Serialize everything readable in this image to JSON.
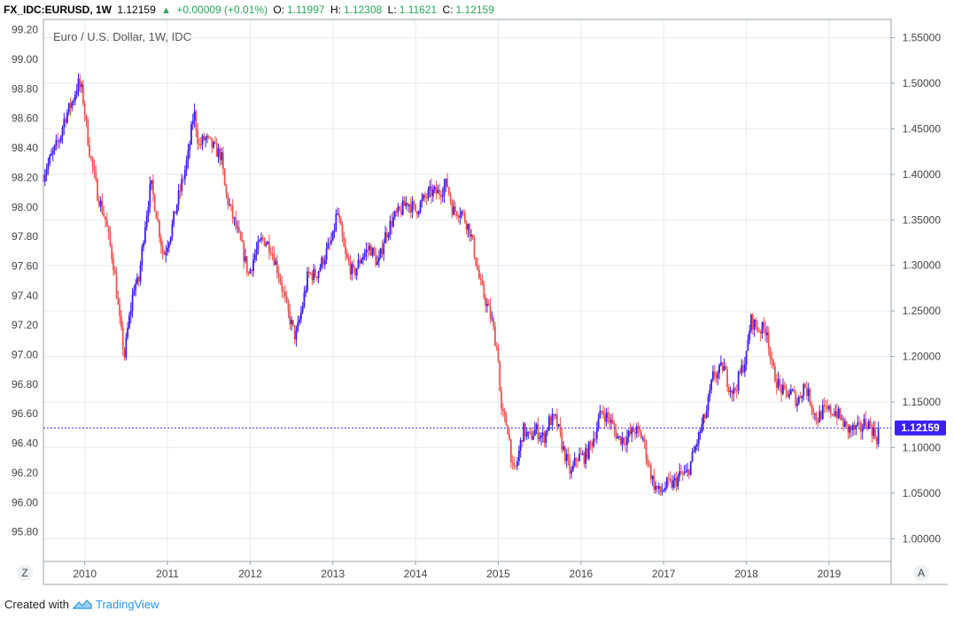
{
  "header": {
    "symbol": "FX_IDC:EURUSD, 1W",
    "price": "1.12159",
    "change": "+0.00009 (+0.01%)",
    "open_label": "O:",
    "open": "1.11997",
    "high_label": "H:",
    "high": "1.12308",
    "low_label": "L:",
    "low": "1.11621",
    "close_label": "C:",
    "close": "1.12159"
  },
  "footer": {
    "created_with": "Created with",
    "brand": "TradingView"
  },
  "colors": {
    "up": "#3b1cf0",
    "down": "#ef5350",
    "price_tag": "#3d20f5",
    "grid": "#e6ecf1",
    "axis_line": "#9aa4ad"
  },
  "chart_data": {
    "type": "candlestick",
    "title": "Euro / U.S. Dollar, 1W, IDC",
    "x_ticks": [
      "2010",
      "2011",
      "2012",
      "2013",
      "2014",
      "2015",
      "2016",
      "2017",
      "2018",
      "2019"
    ],
    "y_left_ticks": [
      "99.20",
      "99.00",
      "98.80",
      "98.60",
      "98.40",
      "98.20",
      "98.00",
      "97.80",
      "97.60",
      "97.40",
      "97.20",
      "97.00",
      "96.80",
      "96.60",
      "96.40",
      "96.20",
      "96.00",
      "95.80"
    ],
    "y_right_ticks": [
      "1.55000",
      "1.50000",
      "1.45000",
      "1.40000",
      "1.35000",
      "1.30000",
      "1.25000",
      "1.20000",
      "1.15000",
      "1.10000",
      "1.05000",
      "1.00000"
    ],
    "right_axis_range": [
      0.975,
      1.57
    ],
    "left_axis_range": [
      95.6,
      99.27
    ],
    "x_range": [
      2009.5,
      2019.75
    ],
    "grid": true,
    "current_price": 1.12159,
    "current_price_label": "1.12159",
    "left_axis_button": "Z",
    "right_axis_button": "A",
    "close_path": [
      [
        2009.5,
        1.4
      ],
      [
        2009.6,
        1.42
      ],
      [
        2009.7,
        1.44
      ],
      [
        2009.75,
        1.46
      ],
      [
        2009.85,
        1.48
      ],
      [
        2009.92,
        1.5
      ],
      [
        2009.97,
        1.49
      ],
      [
        2010.05,
        1.43
      ],
      [
        2010.15,
        1.38
      ],
      [
        2010.25,
        1.35
      ],
      [
        2010.35,
        1.3
      ],
      [
        2010.42,
        1.24
      ],
      [
        2010.48,
        1.2
      ],
      [
        2010.52,
        1.23
      ],
      [
        2010.6,
        1.28
      ],
      [
        2010.65,
        1.28
      ],
      [
        2010.72,
        1.34
      ],
      [
        2010.8,
        1.39
      ],
      [
        2010.88,
        1.35
      ],
      [
        2010.95,
        1.31
      ],
      [
        2011.05,
        1.34
      ],
      [
        2011.12,
        1.37
      ],
      [
        2011.2,
        1.4
      ],
      [
        2011.25,
        1.42
      ],
      [
        2011.32,
        1.47
      ],
      [
        2011.38,
        1.43
      ],
      [
        2011.45,
        1.44
      ],
      [
        2011.55,
        1.43
      ],
      [
        2011.65,
        1.42
      ],
      [
        2011.7,
        1.38
      ],
      [
        2011.8,
        1.35
      ],
      [
        2011.9,
        1.32
      ],
      [
        2011.98,
        1.29
      ],
      [
        2012.05,
        1.31
      ],
      [
        2012.15,
        1.33
      ],
      [
        2012.25,
        1.32
      ],
      [
        2012.35,
        1.29
      ],
      [
        2012.45,
        1.25
      ],
      [
        2012.55,
        1.22
      ],
      [
        2012.62,
        1.25
      ],
      [
        2012.7,
        1.29
      ],
      [
        2012.8,
        1.29
      ],
      [
        2012.9,
        1.31
      ],
      [
        2013.0,
        1.33
      ],
      [
        2013.05,
        1.36
      ],
      [
        2013.15,
        1.31
      ],
      [
        2013.25,
        1.29
      ],
      [
        2013.35,
        1.31
      ],
      [
        2013.45,
        1.32
      ],
      [
        2013.55,
        1.3
      ],
      [
        2013.62,
        1.33
      ],
      [
        2013.72,
        1.35
      ],
      [
        2013.82,
        1.36
      ],
      [
        2013.9,
        1.37
      ],
      [
        2014.0,
        1.36
      ],
      [
        2014.08,
        1.37
      ],
      [
        2014.18,
        1.38
      ],
      [
        2014.28,
        1.38
      ],
      [
        2014.38,
        1.39
      ],
      [
        2014.45,
        1.36
      ],
      [
        2014.55,
        1.36
      ],
      [
        2014.65,
        1.34
      ],
      [
        2014.7,
        1.32
      ],
      [
        2014.78,
        1.28
      ],
      [
        2014.85,
        1.26
      ],
      [
        2014.92,
        1.24
      ],
      [
        2015.0,
        1.2
      ],
      [
        2015.03,
        1.14
      ],
      [
        2015.08,
        1.13
      ],
      [
        2015.12,
        1.12
      ],
      [
        2015.18,
        1.07
      ],
      [
        2015.22,
        1.08
      ],
      [
        2015.3,
        1.12
      ],
      [
        2015.38,
        1.11
      ],
      [
        2015.45,
        1.12
      ],
      [
        2015.55,
        1.11
      ],
      [
        2015.62,
        1.13
      ],
      [
        2015.7,
        1.13
      ],
      [
        2015.78,
        1.1
      ],
      [
        2015.88,
        1.07
      ],
      [
        2015.95,
        1.09
      ],
      [
        2016.05,
        1.09
      ],
      [
        2016.15,
        1.11
      ],
      [
        2016.25,
        1.14
      ],
      [
        2016.35,
        1.13
      ],
      [
        2016.45,
        1.11
      ],
      [
        2016.55,
        1.11
      ],
      [
        2016.65,
        1.12
      ],
      [
        2016.75,
        1.11
      ],
      [
        2016.82,
        1.08
      ],
      [
        2016.88,
        1.06
      ],
      [
        2016.95,
        1.05
      ],
      [
        2017.05,
        1.06
      ],
      [
        2017.12,
        1.06
      ],
      [
        2017.2,
        1.07
      ],
      [
        2017.28,
        1.07
      ],
      [
        2017.35,
        1.09
      ],
      [
        2017.45,
        1.12
      ],
      [
        2017.52,
        1.14
      ],
      [
        2017.6,
        1.18
      ],
      [
        2017.65,
        1.18
      ],
      [
        2017.72,
        1.19
      ],
      [
        2017.78,
        1.17
      ],
      [
        2017.85,
        1.16
      ],
      [
        2017.92,
        1.18
      ],
      [
        2018.0,
        1.2
      ],
      [
        2018.05,
        1.24
      ],
      [
        2018.15,
        1.23
      ],
      [
        2018.25,
        1.23
      ],
      [
        2018.3,
        1.19
      ],
      [
        2018.38,
        1.17
      ],
      [
        2018.45,
        1.16
      ],
      [
        2018.55,
        1.16
      ],
      [
        2018.62,
        1.15
      ],
      [
        2018.7,
        1.17
      ],
      [
        2018.78,
        1.15
      ],
      [
        2018.85,
        1.13
      ],
      [
        2018.92,
        1.14
      ],
      [
        2019.0,
        1.14
      ],
      [
        2019.08,
        1.14
      ],
      [
        2019.15,
        1.13
      ],
      [
        2019.22,
        1.12
      ],
      [
        2019.3,
        1.12
      ],
      [
        2019.38,
        1.12
      ],
      [
        2019.45,
        1.13
      ],
      [
        2019.52,
        1.12
      ],
      [
        2019.58,
        1.11
      ],
      [
        2019.6,
        1.12159
      ]
    ]
  }
}
